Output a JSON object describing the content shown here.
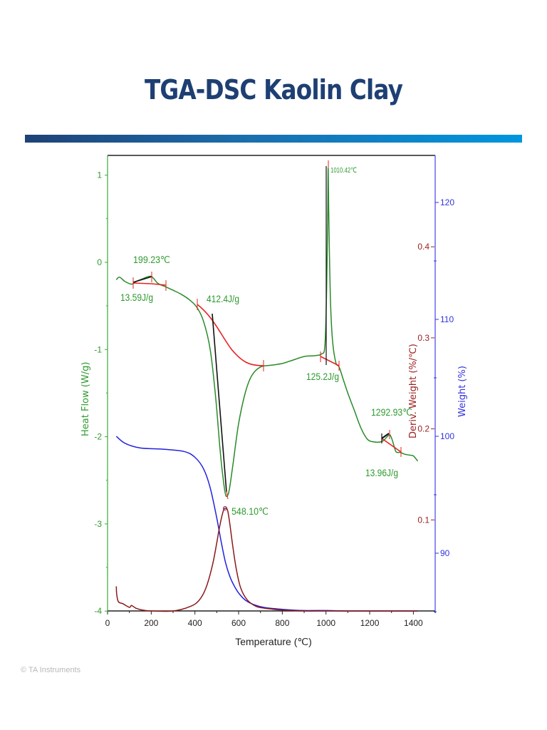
{
  "slide": {
    "title": "TGA-DSC Kaolin Clay",
    "footer": "© TA Instruments",
    "accent_gradient": [
      "#1f4277",
      "#0096de"
    ]
  },
  "chart_data": {
    "type": "line",
    "title": "TGA-DSC Kaolin Clay",
    "xlabel": "Temperature (℃)",
    "xlim": [
      0,
      1500
    ],
    "xticks": [
      0,
      200,
      400,
      600,
      800,
      1000,
      1200,
      1400
    ],
    "axes": {
      "heat_flow": {
        "label": "Heat Flow (W/g)",
        "side": "left",
        "color": "#2e9a2e",
        "ylim": [
          -4,
          1.2
        ],
        "ticks": [
          1,
          0,
          -1,
          -2,
          -3,
          -4
        ]
      },
      "deriv_weight": {
        "label": "Deriv. Weight (%/℃)",
        "side": "right-inner",
        "color": "#9b2020",
        "ylim": [
          0.0,
          0.5
        ],
        "ticks": [
          0.4,
          0.3,
          0.2,
          0.1
        ]
      },
      "weight": {
        "label": "Weight (%)",
        "side": "right",
        "color": "#3333dd",
        "ylim": [
          85,
          123
        ],
        "ticks": [
          120,
          110,
          100,
          90
        ]
      }
    },
    "series": [
      {
        "name": "Heat Flow",
        "axis": "heat_flow",
        "color": "#2a8a2a",
        "x": [
          40,
          55,
          80,
          110,
          130,
          160,
          199,
          230,
          265,
          300,
          340,
          380,
          410,
          440,
          470,
          495,
          515,
          530,
          540,
          548,
          558,
          575,
          600,
          630,
          660,
          700,
          750,
          800,
          850,
          900,
          950,
          980,
          995,
          1003,
          1008,
          1010,
          1013,
          1020,
          1030,
          1045,
          1060,
          1080,
          1100,
          1130,
          1160,
          1190,
          1220,
          1250,
          1265,
          1280,
          1293,
          1305,
          1320,
          1340,
          1360,
          1380,
          1400,
          1420
        ],
        "y": [
          -0.2,
          -0.17,
          -0.22,
          -0.25,
          -0.22,
          -0.19,
          -0.16,
          -0.24,
          -0.28,
          -0.32,
          -0.37,
          -0.44,
          -0.52,
          -0.68,
          -1.0,
          -1.55,
          -2.15,
          -2.5,
          -2.66,
          -2.68,
          -2.6,
          -2.3,
          -1.85,
          -1.5,
          -1.3,
          -1.2,
          -1.18,
          -1.16,
          -1.12,
          -1.08,
          -1.07,
          -1.05,
          -0.95,
          -0.3,
          0.6,
          1.08,
          0.5,
          -0.4,
          -0.9,
          -1.15,
          -1.2,
          -1.35,
          -1.5,
          -1.7,
          -1.9,
          -2.03,
          -2.06,
          -2.06,
          -2.04,
          -2.0,
          -1.98,
          -2.05,
          -2.17,
          -2.18,
          -2.2,
          -2.21,
          -2.22,
          -2.28
        ]
      },
      {
        "name": "Weight",
        "axis": "weight",
        "color": "#2222dd",
        "x": [
          40,
          80,
          150,
          250,
          350,
          400,
          440,
          470,
          500,
          520,
          540,
          560,
          580,
          600,
          630,
          670,
          720,
          800,
          900,
          1000,
          1100,
          1200,
          1300,
          1420
        ],
        "y": [
          100.0,
          99.4,
          99.0,
          98.9,
          98.7,
          98.2,
          97.2,
          95.6,
          93.0,
          91.0,
          89.2,
          88.0,
          87.2,
          86.6,
          86.0,
          85.6,
          85.35,
          85.2,
          85.1,
          85.1,
          85.05,
          85.05,
          85.05,
          85.05
        ]
      },
      {
        "name": "Deriv. Weight",
        "axis": "deriv_weight",
        "color": "#8b1a1a",
        "x": [
          40,
          42,
          50,
          70,
          100,
          110,
          130,
          160,
          200,
          300,
          380,
          420,
          450,
          480,
          500,
          515,
          530,
          540,
          550,
          560,
          575,
          590,
          610,
          640,
          680,
          720,
          800,
          900,
          1000,
          1200,
          1420
        ],
        "y": [
          0.027,
          0.018,
          0.01,
          0.008,
          0.004,
          0.006,
          0.003,
          0.001,
          0.0,
          0.0,
          0.005,
          0.012,
          0.025,
          0.05,
          0.075,
          0.095,
          0.11,
          0.113,
          0.11,
          0.095,
          0.068,
          0.045,
          0.025,
          0.012,
          0.005,
          0.003,
          0.001,
          0.0,
          0.0,
          0.0,
          0.0
        ]
      }
    ],
    "annotations": [
      {
        "text": "199.23℃",
        "type": "peak",
        "x": 199.23
      },
      {
        "text": "13.59J/g",
        "type": "enthalpy",
        "range": [
          118,
          265
        ]
      },
      {
        "text": "412.4J/g",
        "type": "enthalpy",
        "range": [
          410,
          710
        ]
      },
      {
        "text": "548.10℃",
        "type": "peak",
        "x": 548.1
      },
      {
        "text": "1010.42℃",
        "type": "peak",
        "x": 1010.42
      },
      {
        "text": "125.2J/g",
        "type": "enthalpy",
        "range": [
          975,
          1060
        ]
      },
      {
        "text": "1292.93℃",
        "type": "peak",
        "x": 1292.93
      },
      {
        "text": "13.96J/g",
        "type": "enthalpy",
        "range": [
          1250,
          1340
        ]
      }
    ],
    "grid": false,
    "legend": "none"
  }
}
